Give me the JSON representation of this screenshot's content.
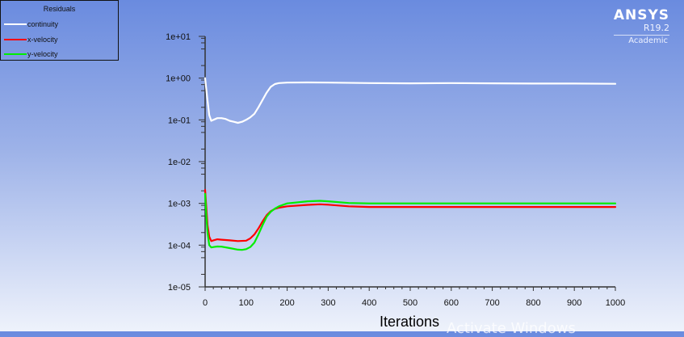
{
  "legend": {
    "title": "Residuals",
    "items": [
      {
        "label": "continuity",
        "color": "#ffffff"
      },
      {
        "label": "x-velocity",
        "color": "#ff0000"
      },
      {
        "label": "y-velocity",
        "color": "#00ee00"
      }
    ]
  },
  "logo": {
    "name": "ANSYS",
    "version": "R19.2",
    "edition": "Academic"
  },
  "watermark": "Activate Windows",
  "chart_data": {
    "type": "line",
    "title": "Residuals",
    "xlabel": "Iterations",
    "ylabel": "",
    "yscale": "log",
    "xlim": [
      0,
      1000
    ],
    "ylim": [
      1e-05,
      10
    ],
    "xticks": [
      0,
      100,
      200,
      300,
      400,
      500,
      600,
      700,
      800,
      900,
      1000
    ],
    "xtick_labels": [
      "0",
      "100",
      "200",
      "300",
      "400",
      "500",
      "600",
      "700",
      "800",
      "900",
      "1000"
    ],
    "yticks": [
      10,
      1,
      0.1,
      0.01,
      0.001,
      0.0001,
      1e-05
    ],
    "ytick_labels": [
      "1e+01",
      "1e+00",
      "1e-01",
      "1e-02",
      "1e-03",
      "1e-04",
      "1e-05"
    ],
    "grid": false,
    "legend_position": "top-left",
    "series": [
      {
        "name": "continuity",
        "color": "#ffffff",
        "x": [
          0,
          5,
          10,
          15,
          20,
          30,
          40,
          50,
          60,
          70,
          80,
          90,
          100,
          110,
          120,
          130,
          140,
          150,
          160,
          170,
          180,
          200,
          250,
          300,
          400,
          500,
          600,
          700,
          800,
          900,
          1000
        ],
        "y": [
          1.0,
          0.35,
          0.13,
          0.095,
          0.1,
          0.11,
          0.11,
          0.105,
          0.095,
          0.09,
          0.085,
          0.09,
          0.1,
          0.115,
          0.14,
          0.2,
          0.3,
          0.45,
          0.62,
          0.72,
          0.76,
          0.78,
          0.79,
          0.78,
          0.76,
          0.75,
          0.76,
          0.75,
          0.74,
          0.74,
          0.73
        ]
      },
      {
        "name": "x-velocity",
        "color": "#ff0000",
        "x": [
          0,
          3,
          6,
          10,
          15,
          20,
          30,
          40,
          60,
          80,
          100,
          110,
          120,
          130,
          140,
          150,
          160,
          170,
          180,
          200,
          250,
          280,
          300,
          350,
          400,
          500,
          600,
          700,
          800,
          900,
          1000
        ],
        "y": [
          0.0021,
          0.0008,
          0.0003,
          0.00016,
          0.000125,
          0.00013,
          0.000138,
          0.000135,
          0.00013,
          0.000125,
          0.000128,
          0.000145,
          0.00018,
          0.00025,
          0.00037,
          0.00052,
          0.00065,
          0.00074,
          0.00079,
          0.00085,
          0.00092,
          0.00095,
          0.00093,
          0.00085,
          0.00082,
          0.00082,
          0.00082,
          0.00082,
          0.00082,
          0.00082,
          0.00082
        ]
      },
      {
        "name": "y-velocity",
        "color": "#00ee00",
        "x": [
          0,
          3,
          6,
          10,
          15,
          20,
          30,
          40,
          60,
          80,
          90,
          100,
          110,
          120,
          130,
          140,
          150,
          160,
          170,
          180,
          200,
          250,
          280,
          300,
          350,
          400,
          500,
          600,
          700,
          800,
          900,
          1000
        ],
        "y": [
          0.0017,
          0.0005,
          0.0002,
          0.0001,
          8.8e-05,
          9e-05,
          9.3e-05,
          9.2e-05,
          8.5e-05,
          7.8e-05,
          7.7e-05,
          8e-05,
          9e-05,
          0.000115,
          0.00018,
          0.0003,
          0.00048,
          0.00063,
          0.00075,
          0.00085,
          0.001,
          0.00112,
          0.00115,
          0.00112,
          0.00102,
          0.001,
          0.001,
          0.001,
          0.001,
          0.001,
          0.001,
          0.001
        ]
      }
    ]
  }
}
